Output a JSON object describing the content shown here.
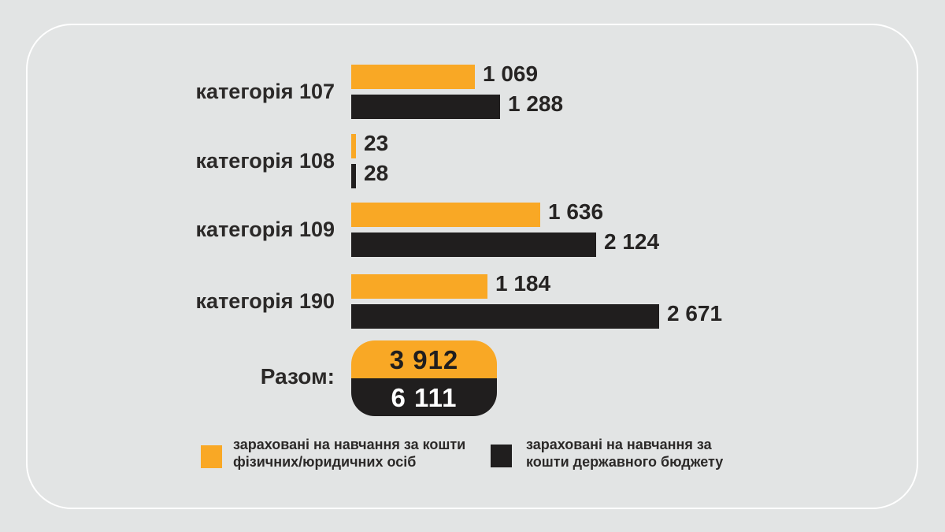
{
  "chart_data": {
    "type": "bar",
    "orientation": "horizontal",
    "categories": [
      "категорія 107",
      "категорія 108",
      "категорія 109",
      "категорія 190"
    ],
    "series": [
      {
        "name": "зараховані на навчання за кошти фізичних/юридичних осіб",
        "color": "#F9A825",
        "values": [
          1069,
          23,
          1636,
          1184
        ],
        "labels": [
          "1 069",
          "23",
          "1 636",
          "1 184"
        ]
      },
      {
        "name": "зараховані на навчання за кошти державного бюджету",
        "color": "#201E1E",
        "values": [
          1288,
          28,
          2124,
          2671
        ],
        "labels": [
          "1 288",
          "28",
          "2 124",
          "2 671"
        ]
      }
    ],
    "totals": {
      "label": "Разом:",
      "values": [
        {
          "text": "3 912",
          "bg": "#F9A825",
          "fg": "#201E1E"
        },
        {
          "text": "6 111",
          "bg": "#201E1E",
          "fg": "#FFFFFF"
        }
      ]
    },
    "xlim": [
      0,
      2700
    ],
    "grid": false,
    "legend_position": "bottom"
  },
  "legend": {
    "items": [
      {
        "swatch_color": "#F9A825",
        "lines": [
          "зараховані на навчання за кошти",
          "фізичних/юридичних осіб"
        ]
      },
      {
        "swatch_color": "#201E1E",
        "lines": [
          "зараховані на навчання за",
          "кошти державного бюджету"
        ]
      }
    ]
  },
  "colors": {
    "background": "#E2E4E4",
    "frame": "#FFFFFF",
    "text": "#2B2928"
  }
}
